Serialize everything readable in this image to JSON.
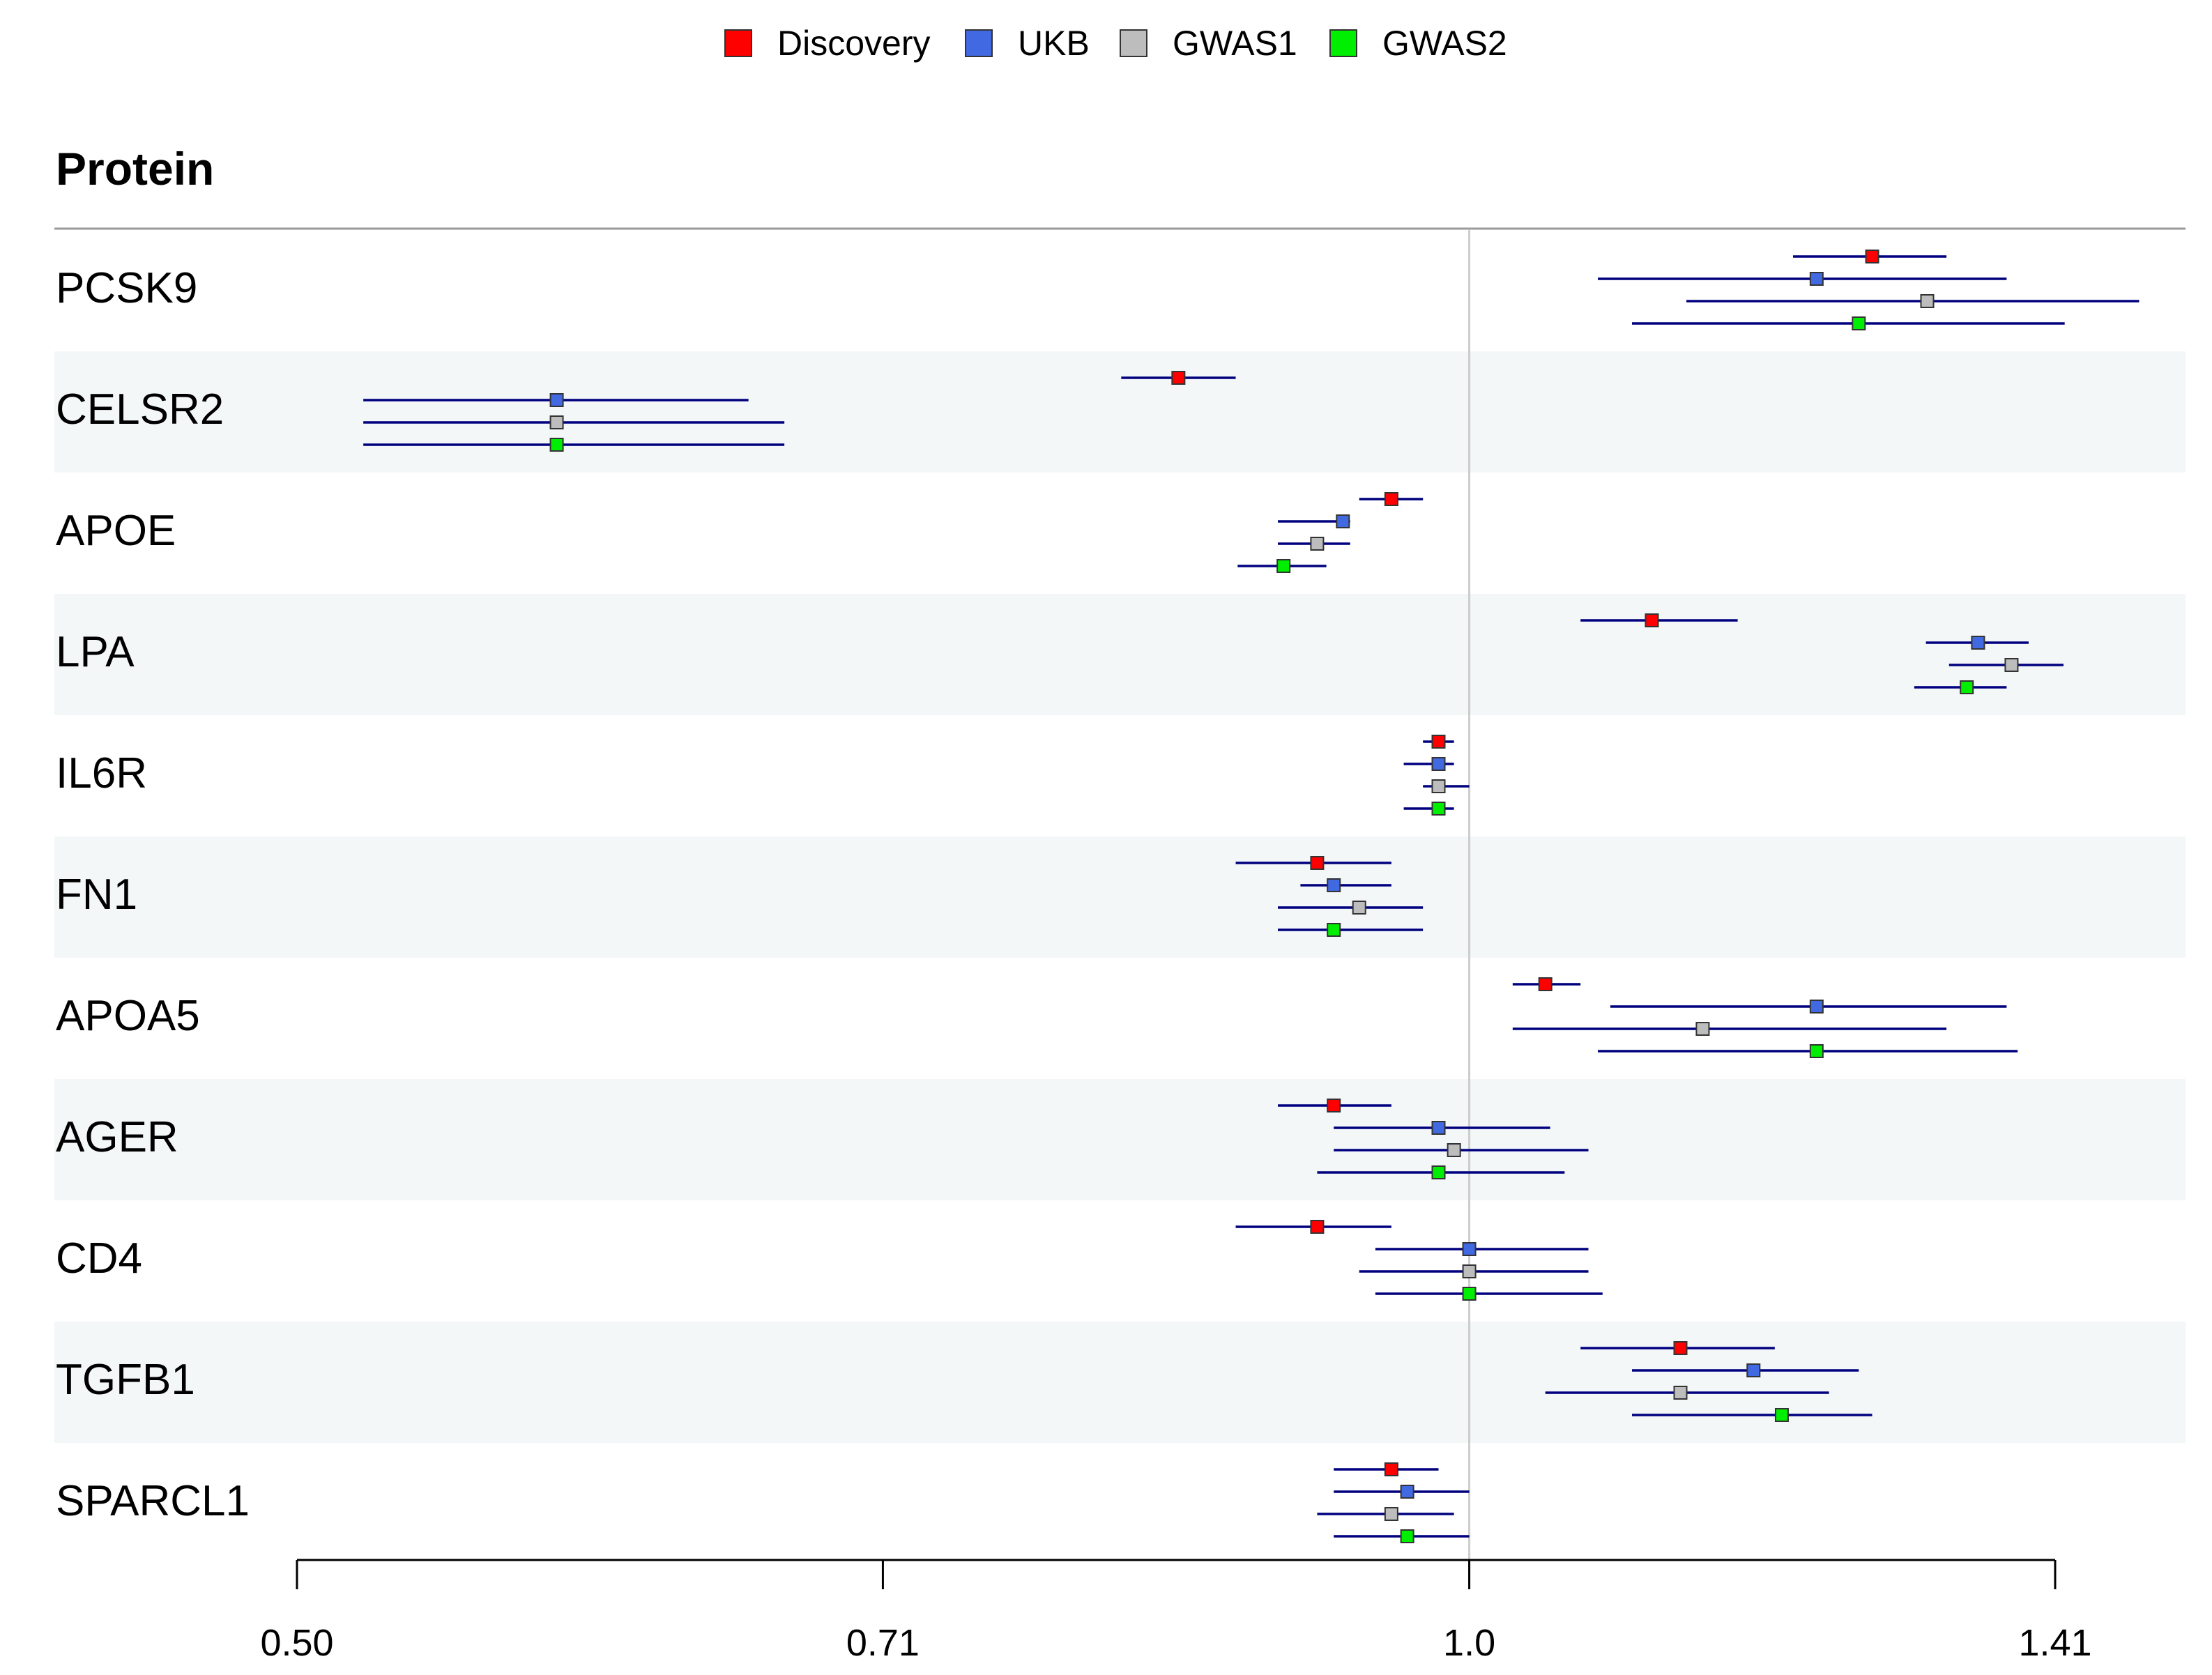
{
  "chart_data": {
    "type": "forest",
    "column_header": "Protein",
    "x_scale": "log",
    "xlim": [
      0.5,
      1.414
    ],
    "x_ticks": [
      {
        "value": 0.5,
        "label": "0.50"
      },
      {
        "value": 0.707,
        "label": "0.71"
      },
      {
        "value": 1.0,
        "label": "1.0"
      },
      {
        "value": 1.414,
        "label": "1.41"
      }
    ],
    "reference_line": 1.0,
    "series": [
      {
        "name": "Discovery",
        "color": "#ff0000"
      },
      {
        "name": "UKB",
        "color": "#4169e1"
      },
      {
        "name": "GWAS1",
        "color": "#bdbdbd"
      },
      {
        "name": "GWAS2",
        "color": "#00ee00"
      }
    ],
    "ci_color": "#00007f",
    "band_color": "#f4f7f8",
    "rows": [
      {
        "protein": "PCSK9",
        "estimates": [
          {
            "est": 1.269,
            "lo": 1.211,
            "hi": 1.326
          },
          {
            "est": 1.228,
            "lo": 1.079,
            "hi": 1.374
          },
          {
            "est": 1.311,
            "lo": 1.137,
            "hi": 1.486
          },
          {
            "est": 1.259,
            "lo": 1.101,
            "hi": 1.422
          }
        ]
      },
      {
        "protein": "CELSR2",
        "estimates": [
          {
            "est": 0.842,
            "lo": 0.814,
            "hi": 0.871
          },
          {
            "est": 0.583,
            "lo": 0.52,
            "hi": 0.653
          },
          {
            "est": 0.583,
            "lo": 0.52,
            "hi": 0.667
          },
          {
            "est": 0.583,
            "lo": 0.52,
            "hi": 0.667
          }
        ]
      },
      {
        "protein": "APOE",
        "estimates": [
          {
            "est": 0.955,
            "lo": 0.937,
            "hi": 0.973
          },
          {
            "est": 0.928,
            "lo": 0.893,
            "hi": 0.932
          },
          {
            "est": 0.914,
            "lo": 0.893,
            "hi": 0.932
          },
          {
            "est": 0.896,
            "lo": 0.872,
            "hi": 0.919
          }
        ]
      },
      {
        "protein": "LPA",
        "estimates": [
          {
            "est": 1.114,
            "lo": 1.068,
            "hi": 1.172
          },
          {
            "est": 1.351,
            "lo": 1.31,
            "hi": 1.392
          },
          {
            "est": 1.378,
            "lo": 1.328,
            "hi": 1.421
          },
          {
            "est": 1.342,
            "lo": 1.301,
            "hi": 1.374
          }
        ]
      },
      {
        "protein": "IL6R",
        "estimates": [
          {
            "est": 0.982,
            "lo": 0.973,
            "hi": 0.991
          },
          {
            "est": 0.982,
            "lo": 0.962,
            "hi": 0.991
          },
          {
            "est": 0.982,
            "lo": 0.973,
            "hi": 1.0
          },
          {
            "est": 0.982,
            "lo": 0.962,
            "hi": 0.991
          }
        ]
      },
      {
        "protein": "FN1",
        "estimates": [
          {
            "est": 0.914,
            "lo": 0.871,
            "hi": 0.955
          },
          {
            "est": 0.923,
            "lo": 0.905,
            "hi": 0.955
          },
          {
            "est": 0.937,
            "lo": 0.893,
            "hi": 0.973
          },
          {
            "est": 0.923,
            "lo": 0.893,
            "hi": 0.973
          }
        ]
      },
      {
        "protein": "APOA5",
        "estimates": [
          {
            "est": 1.046,
            "lo": 1.026,
            "hi": 1.068
          },
          {
            "est": 1.228,
            "lo": 1.087,
            "hi": 1.374
          },
          {
            "est": 1.148,
            "lo": 1.026,
            "hi": 1.326
          },
          {
            "est": 1.228,
            "lo": 1.079,
            "hi": 1.383
          }
        ]
      },
      {
        "protein": "AGER",
        "estimates": [
          {
            "est": 0.923,
            "lo": 0.893,
            "hi": 0.955
          },
          {
            "est": 0.982,
            "lo": 0.923,
            "hi": 1.049
          },
          {
            "est": 0.991,
            "lo": 0.923,
            "hi": 1.073
          },
          {
            "est": 0.982,
            "lo": 0.914,
            "hi": 1.058
          }
        ]
      },
      {
        "protein": "CD4",
        "estimates": [
          {
            "est": 0.914,
            "lo": 0.871,
            "hi": 0.955
          },
          {
            "est": 1.0,
            "lo": 0.946,
            "hi": 1.073
          },
          {
            "est": 1.0,
            "lo": 0.937,
            "hi": 1.073
          },
          {
            "est": 1.0,
            "lo": 0.946,
            "hi": 1.082
          }
        ]
      },
      {
        "protein": "TGFB1",
        "estimates": [
          {
            "est": 1.133,
            "lo": 1.068,
            "hi": 1.198
          },
          {
            "est": 1.183,
            "lo": 1.101,
            "hi": 1.259
          },
          {
            "est": 1.133,
            "lo": 1.046,
            "hi": 1.237
          },
          {
            "est": 1.203,
            "lo": 1.101,
            "hi": 1.269
          }
        ]
      },
      {
        "protein": "SPARCL1",
        "estimates": [
          {
            "est": 0.955,
            "lo": 0.923,
            "hi": 0.982
          },
          {
            "est": 0.964,
            "lo": 0.923,
            "hi": 1.0
          },
          {
            "est": 0.955,
            "lo": 0.914,
            "hi": 0.991
          },
          {
            "est": 0.964,
            "lo": 0.923,
            "hi": 1.0
          }
        ]
      }
    ]
  }
}
